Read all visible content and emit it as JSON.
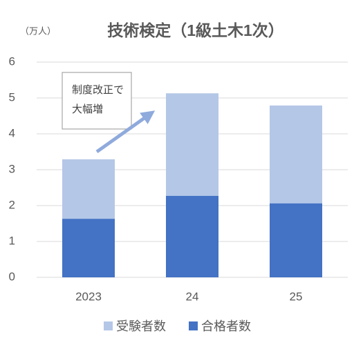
{
  "chart_data": {
    "type": "bar",
    "overlap": true,
    "title": "技術検定（1級土木1次）",
    "unit_label": "（万人）",
    "categories": [
      "2023",
      "24",
      "25"
    ],
    "series": [
      {
        "name": "受験者数",
        "color": "#b4c7e7",
        "values": [
          3.29,
          5.13,
          4.79
        ]
      },
      {
        "name": "合格者数",
        "color": "#4472c4",
        "values": [
          1.63,
          2.27,
          2.06
        ]
      }
    ],
    "ylim": [
      0,
      6
    ],
    "yticks": [
      0,
      1,
      2,
      3,
      4,
      5,
      6
    ],
    "grid": true,
    "annotation": [
      "制度改正で",
      "大幅増"
    ],
    "legend": "bottom"
  }
}
